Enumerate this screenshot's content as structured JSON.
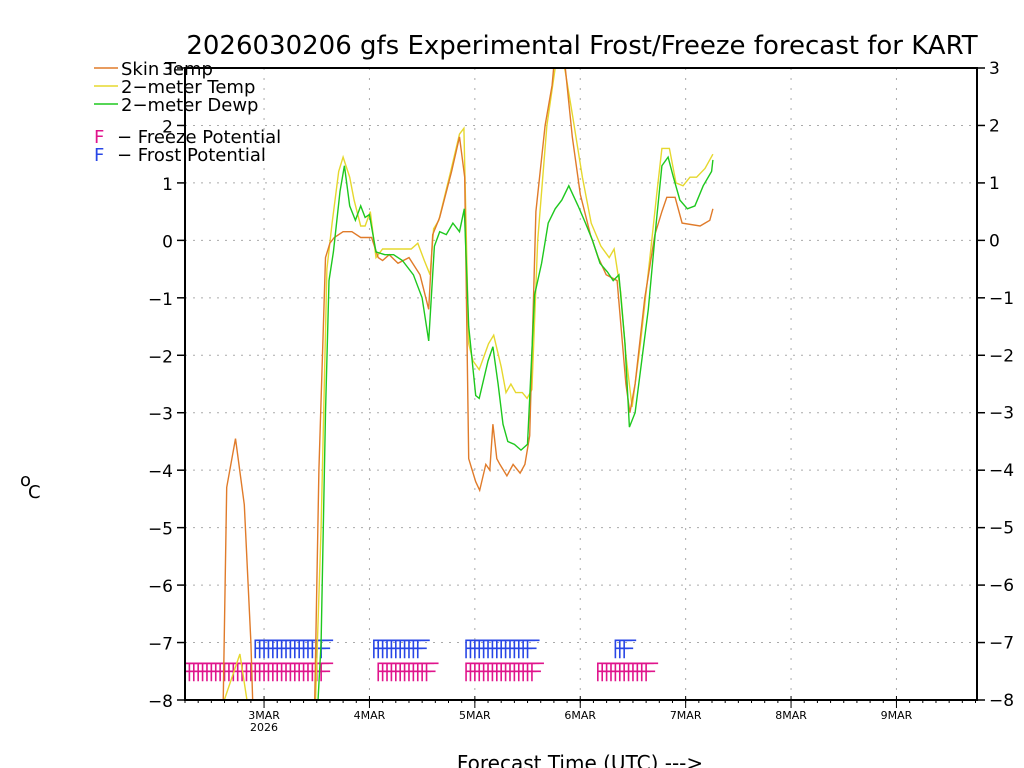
{
  "chart_data": {
    "type": "line",
    "title": "2026030206 gfs Experimental Frost/Freeze forecast for KART",
    "xlabel": "Forecast Time (UTC) --->",
    "ylabel": "°C",
    "ylabel_sup": "o",
    "ylabel_main": "C",
    "ylim": [
      -8,
      3
    ],
    "yticks": [
      3,
      2,
      1,
      0,
      -1,
      -2,
      -3,
      -4,
      -5,
      -6,
      -7,
      -8
    ],
    "ytick_labels": [
      "3",
      "2",
      "1",
      "0",
      "−1",
      "−2",
      "−3",
      "−4",
      "−5",
      "−6",
      "−7",
      "−8"
    ],
    "x_unit": "hours since 2026-03-02 06Z",
    "xlim_hours": [
      0,
      180
    ],
    "xticks": [
      {
        "hours": 18,
        "label": "3MAR",
        "sublabel": "2026"
      },
      {
        "hours": 42,
        "label": "4MAR",
        "sublabel": ""
      },
      {
        "hours": 66,
        "label": "5MAR",
        "sublabel": ""
      },
      {
        "hours": 90,
        "label": "6MAR",
        "sublabel": ""
      },
      {
        "hours": 114,
        "label": "7MAR",
        "sublabel": ""
      },
      {
        "hours": 138,
        "label": "8MAR",
        "sublabel": ""
      },
      {
        "hours": 162,
        "label": "9MAR",
        "sublabel": ""
      }
    ],
    "grid": true,
    "legend": {
      "placement": "top-left",
      "entries": [
        {
          "label": "Skin Temp",
          "color": "#e07b2a",
          "kind": "line"
        },
        {
          "label": "2−meter Temp",
          "color": "#e6d82e",
          "kind": "line"
        },
        {
          "label": "2−meter Dewp",
          "color": "#1ec81e",
          "kind": "line"
        },
        {
          "label": "F − Freeze Potential",
          "color": "#e0148c",
          "kind": "marker"
        },
        {
          "label": "F − Frost Potential",
          "color": "#2846e6",
          "kind": "marker"
        }
      ]
    },
    "series": [
      {
        "name": "Skin Temp",
        "color": "#e07b2a",
        "points": [
          [
            8.5,
            -9
          ],
          [
            9.5,
            -4.3
          ],
          [
            11.5,
            -3.45
          ],
          [
            13.5,
            -4.6
          ],
          [
            15,
            -7
          ],
          [
            15.8,
            -9
          ],
          [
            29.3,
            -9
          ],
          [
            30.5,
            -4
          ],
          [
            32,
            -0.3
          ],
          [
            33,
            -0.05
          ],
          [
            34,
            0.05
          ],
          [
            36,
            0.15
          ],
          [
            38,
            0.15
          ],
          [
            40,
            0.05
          ],
          [
            42.5,
            0.05
          ],
          [
            44,
            -0.3
          ],
          [
            45,
            -0.35
          ],
          [
            46.5,
            -0.25
          ],
          [
            48.5,
            -0.4
          ],
          [
            51,
            -0.3
          ],
          [
            53.5,
            -0.6
          ],
          [
            55.5,
            -1.2
          ],
          [
            56.4,
            0.1
          ],
          [
            58,
            0.4
          ],
          [
            60.7,
            1.2
          ],
          [
            62.5,
            1.8
          ],
          [
            63.7,
            1.1
          ],
          [
            64.6,
            -3.8
          ],
          [
            66.2,
            -4.2
          ],
          [
            67.1,
            -4.35
          ],
          [
            68.5,
            -3.9
          ],
          [
            69.4,
            -4.0
          ],
          [
            70.1,
            -3.2
          ],
          [
            71,
            -3.8
          ],
          [
            71.7,
            -3.9
          ],
          [
            73.3,
            -4.1
          ],
          [
            74.7,
            -3.9
          ],
          [
            76.3,
            -4.05
          ],
          [
            77.4,
            -3.9
          ],
          [
            78.5,
            -3.4
          ],
          [
            79.9,
            0.5
          ],
          [
            82,
            2.0
          ],
          [
            83.6,
            2.7
          ],
          [
            84.3,
            3.3
          ],
          [
            86.6,
            3.0
          ],
          [
            88.2,
            1.8
          ],
          [
            90,
            0.8
          ],
          [
            92.3,
            0.1
          ],
          [
            94.1,
            -0.3
          ],
          [
            95.9,
            -0.6
          ],
          [
            98.4,
            -0.7
          ],
          [
            100.4,
            -2.5
          ],
          [
            101.3,
            -3.0
          ],
          [
            102.5,
            -2.5
          ],
          [
            104.7,
            -1.0
          ],
          [
            107,
            0.1
          ],
          [
            108.6,
            0.5
          ],
          [
            109.7,
            0.75
          ],
          [
            111.6,
            0.75
          ],
          [
            113.2,
            0.3
          ],
          [
            117.3,
            0.25
          ],
          [
            118.4,
            0.3
          ],
          [
            119.5,
            0.35
          ],
          [
            120.2,
            0.55
          ]
        ]
      },
      {
        "name": "2-meter Temp",
        "color": "#e6d82e",
        "points": [
          [
            4.5,
            -9
          ],
          [
            12.5,
            -7.2
          ],
          [
            14.5,
            -8.2
          ],
          [
            15,
            -9
          ],
          [
            29.3,
            -9
          ],
          [
            31,
            -5
          ],
          [
            32.3,
            -0.5
          ],
          [
            33.5,
            0.3
          ],
          [
            35,
            1.2
          ],
          [
            36,
            1.45
          ],
          [
            37.5,
            1.1
          ],
          [
            38.5,
            0.7
          ],
          [
            40,
            0.25
          ],
          [
            41,
            0.25
          ],
          [
            42.2,
            0.5
          ],
          [
            43.5,
            -0.3
          ],
          [
            45,
            -0.15
          ],
          [
            47,
            -0.15
          ],
          [
            49,
            -0.15
          ],
          [
            51.5,
            -0.15
          ],
          [
            53,
            -0.05
          ],
          [
            54.5,
            -0.35
          ],
          [
            55.8,
            -0.6
          ],
          [
            56.6,
            0.2
          ],
          [
            57.8,
            0.35
          ],
          [
            60.5,
            1.2
          ],
          [
            62.5,
            1.85
          ],
          [
            63.5,
            1.95
          ],
          [
            64.6,
            -1.8
          ],
          [
            65.6,
            -2.1
          ],
          [
            67,
            -2.25
          ],
          [
            69.1,
            -1.8
          ],
          [
            70.3,
            -1.65
          ],
          [
            72,
            -2.2
          ],
          [
            73.1,
            -2.65
          ],
          [
            74.2,
            -2.5
          ],
          [
            75.3,
            -2.65
          ],
          [
            76.8,
            -2.65
          ],
          [
            77.9,
            -2.75
          ],
          [
            79,
            -2.6
          ],
          [
            80.3,
            0.0
          ],
          [
            82.4,
            2.0
          ],
          [
            84.3,
            3.0
          ],
          [
            85.8,
            3.3
          ],
          [
            88.2,
            2.2
          ],
          [
            90.5,
            1.1
          ],
          [
            92.5,
            0.3
          ],
          [
            94.7,
            -0.1
          ],
          [
            96.6,
            -0.3
          ],
          [
            97.7,
            -0.15
          ],
          [
            99.2,
            -0.9
          ],
          [
            100.4,
            -2.0
          ],
          [
            101.8,
            -2.9
          ],
          [
            103.7,
            -1.8
          ],
          [
            105.8,
            -0.35
          ],
          [
            107.4,
            0.8
          ],
          [
            108.6,
            1.6
          ],
          [
            110.3,
            1.6
          ],
          [
            111.8,
            1.0
          ],
          [
            113.4,
            0.95
          ],
          [
            115,
            1.1
          ],
          [
            116.5,
            1.1
          ],
          [
            118.4,
            1.25
          ],
          [
            120.2,
            1.5
          ]
        ]
      },
      {
        "name": "2-meter Dewp",
        "color": "#1ec81e",
        "points": [
          [
            29.6,
            -9
          ],
          [
            31,
            -7
          ],
          [
            32,
            -3
          ],
          [
            32.8,
            -0.7
          ],
          [
            33.8,
            -0.2
          ],
          [
            35.3,
            0.85
          ],
          [
            36.3,
            1.3
          ],
          [
            37.5,
            0.6
          ],
          [
            38.8,
            0.35
          ],
          [
            40,
            0.6
          ],
          [
            41,
            0.4
          ],
          [
            42,
            0.45
          ],
          [
            43.5,
            -0.2
          ],
          [
            45.5,
            -0.25
          ],
          [
            47.5,
            -0.25
          ],
          [
            49.5,
            -0.35
          ],
          [
            52,
            -0.6
          ],
          [
            54,
            -1.0
          ],
          [
            55.5,
            -1.75
          ],
          [
            56.8,
            -0.1
          ],
          [
            58,
            0.15
          ],
          [
            59.5,
            0.1
          ],
          [
            61,
            0.3
          ],
          [
            62.5,
            0.15
          ],
          [
            63.6,
            0.55
          ],
          [
            64.6,
            -1.5
          ],
          [
            66.2,
            -2.7
          ],
          [
            67,
            -2.75
          ],
          [
            69,
            -2.1
          ],
          [
            70.1,
            -1.85
          ],
          [
            71.3,
            -2.5
          ],
          [
            72.4,
            -3.2
          ],
          [
            73.5,
            -3.5
          ],
          [
            75,
            -3.55
          ],
          [
            76.5,
            -3.65
          ],
          [
            78,
            -3.55
          ],
          [
            79.6,
            -0.95
          ],
          [
            81.2,
            -0.4
          ],
          [
            82.7,
            0.3
          ],
          [
            84.3,
            0.55
          ],
          [
            85.8,
            0.7
          ],
          [
            87.4,
            0.95
          ],
          [
            89.5,
            0.6
          ],
          [
            91.2,
            0.3
          ],
          [
            92.8,
            0.0
          ],
          [
            94.5,
            -0.4
          ],
          [
            96.2,
            -0.55
          ],
          [
            97.5,
            -0.7
          ],
          [
            98.8,
            -0.6
          ],
          [
            100.2,
            -1.8
          ],
          [
            101.2,
            -3.25
          ],
          [
            102.5,
            -3.0
          ],
          [
            104,
            -2.1
          ],
          [
            105.5,
            -1.2
          ],
          [
            107.3,
            0.3
          ],
          [
            108.6,
            1.3
          ],
          [
            110,
            1.45
          ],
          [
            111.2,
            1.1
          ],
          [
            112.7,
            0.7
          ],
          [
            114.4,
            0.55
          ],
          [
            116.1,
            0.6
          ],
          [
            118,
            0.95
          ],
          [
            119.9,
            1.2
          ],
          [
            120.2,
            1.4
          ]
        ]
      }
    ],
    "freeze_potential": {
      "label": "F",
      "color": "#e0148c",
      "level": -7.5,
      "hours": [
        -1,
        0,
        1,
        2,
        3,
        4,
        5,
        6,
        7,
        8,
        9,
        10,
        11,
        12,
        13,
        14,
        15,
        16,
        17,
        18,
        19,
        20,
        21,
        22,
        23,
        24,
        25,
        26,
        27,
        28,
        29,
        30,
        31,
        44,
        45,
        46,
        47,
        48,
        49,
        50,
        51,
        52,
        53,
        54,
        55,
        64,
        65,
        66,
        67,
        68,
        69,
        70,
        71,
        72,
        73,
        74,
        75,
        76,
        77,
        78,
        79,
        94,
        95,
        96,
        97,
        98,
        99,
        100,
        101,
        102,
        103,
        104,
        105
      ]
    },
    "frost_potential": {
      "label": "F",
      "color": "#2846e6",
      "level": -7.1,
      "hours": [
        16,
        17,
        18,
        19,
        20,
        21,
        22,
        23,
        24,
        25,
        26,
        27,
        28,
        29,
        30,
        31,
        43,
        44,
        45,
        46,
        47,
        48,
        49,
        50,
        51,
        52,
        53,
        64,
        65,
        66,
        67,
        68,
        69,
        70,
        71,
        72,
        73,
        74,
        75,
        76,
        77,
        78,
        98,
        99,
        100
      ]
    }
  }
}
